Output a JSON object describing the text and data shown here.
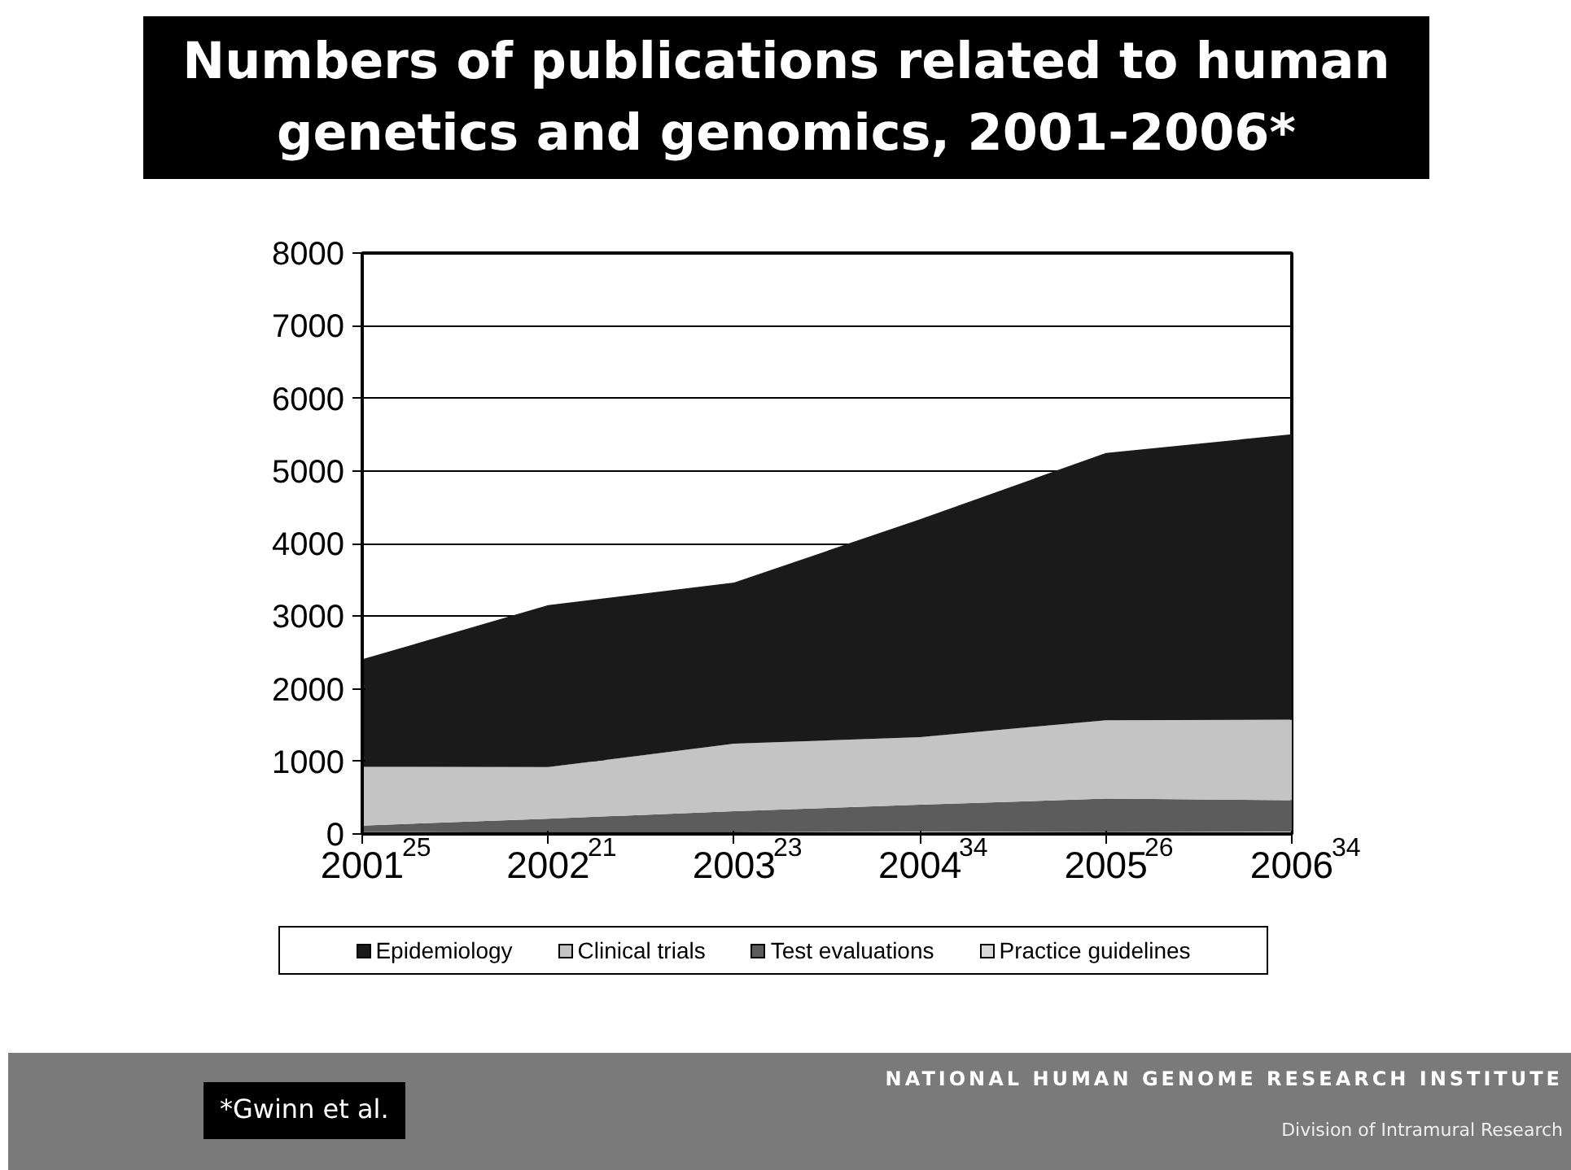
{
  "chart_data": {
    "type": "area",
    "stacked": true,
    "title": "Numbers of publications related to human genetics and genomics, 2001-2006*",
    "categories": [
      "2001",
      "2002",
      "2003",
      "2004",
      "2005",
      "2006"
    ],
    "series": [
      {
        "name": "Practice guidelines",
        "color": "#d9d9d9",
        "values": [
          25,
          21,
          23,
          34,
          26,
          34
        ],
        "value_labels": [
          "25",
          "21",
          "23",
          "34",
          "26",
          "34"
        ]
      },
      {
        "name": "Test evaluations",
        "color": "#5c5c5c",
        "values": [
          90,
          190,
          290,
          370,
          460,
          430
        ]
      },
      {
        "name": "Clinical trials",
        "color": "#c4c4c4",
        "values": [
          810,
          710,
          930,
          930,
          1080,
          1110
        ]
      },
      {
        "name": "Epidemiology",
        "color": "#1a1a1a",
        "values": [
          1480,
          2230,
          2220,
          3000,
          3680,
          3930
        ]
      }
    ],
    "ylim": [
      0,
      8000
    ],
    "yticks": [
      0,
      1000,
      2000,
      3000,
      4000,
      5000,
      6000,
      7000,
      8000
    ],
    "grid": "y",
    "legend": "bottom",
    "annotations": [
      "*Gwinn et al.",
      "NATIONAL HUMAN GENOME RESEARCH INSTITUTE",
      "Division of Intramural Research"
    ]
  }
}
